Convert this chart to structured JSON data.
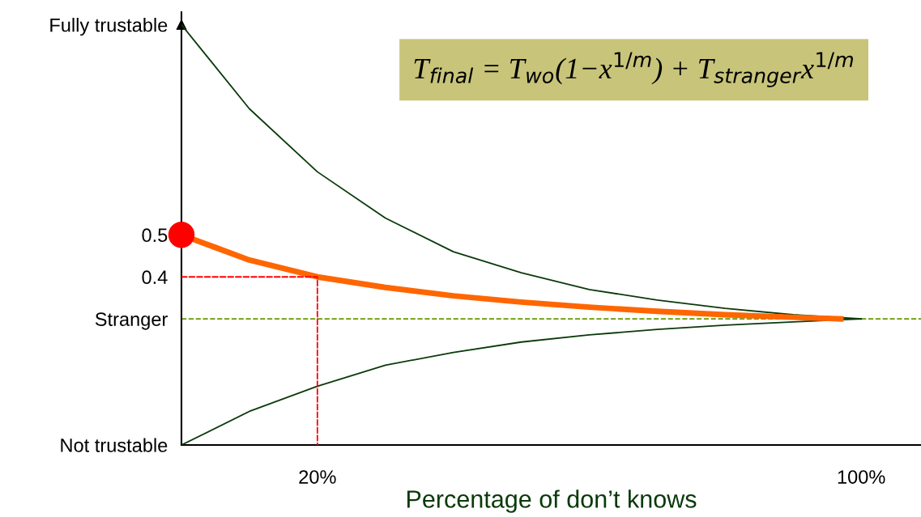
{
  "chart_data": {
    "type": "line",
    "xlabel": "Percentage of don’t knows",
    "xlim": [
      0,
      108.8
    ],
    "ylim": [
      0,
      1.03
    ],
    "xticks": [
      {
        "value": 20,
        "label": "20%"
      },
      {
        "value": 100,
        "label": "100%"
      }
    ],
    "yticks": [
      {
        "value": 0,
        "label": "Not trustable"
      },
      {
        "value": 0.3,
        "label": "Stranger"
      },
      0.4,
      0.5,
      {
        "value": 1,
        "label": "Fully trustable"
      }
    ],
    "grid": false,
    "legend": false,
    "ref_lines": [
      {
        "axis": "y",
        "value": 0.3,
        "color": "#669900",
        "line_style": "dashed"
      }
    ],
    "annotations": [
      "T$_{final}$ = T$_{wo}$(1−x$^{1/m}$) + T$_{stranger}$x$^{1/m}$"
    ],
    "series": [
      {
        "color": "#0a3a0a",
        "line_style": "solid",
        "x": [
          0,
          10,
          20,
          30,
          40,
          50,
          60,
          70,
          80,
          90,
          100
        ],
        "values": [
          1,
          0.8,
          0.65,
          0.54,
          0.46,
          0.41,
          0.37,
          0.345,
          0.325,
          0.31,
          0.3
        ]
      },
      {
        "color": "#0a3a0a",
        "line_style": "solid",
        "x": [
          0,
          10,
          20,
          30,
          40,
          50,
          60,
          70,
          80,
          90,
          100
        ],
        "values": [
          0,
          0.08,
          0.14,
          0.19,
          0.22,
          0.245,
          0.262,
          0.275,
          0.285,
          0.293,
          0.3
        ]
      },
      {
        "color": "#ff6600",
        "line_style": "solid",
        "x": [
          0,
          5,
          10,
          20,
          30,
          40,
          50,
          60,
          70,
          80,
          90,
          97
        ],
        "values": [
          0.5,
          0.47,
          0.44,
          0.4,
          0.375,
          0.355,
          0.34,
          0.328,
          0.318,
          0.31,
          0.304,
          0.3
        ]
      },
      {
        "color": "#ff0000",
        "line_style": "dashed",
        "x": [
          0,
          20,
          20
        ],
        "values": [
          0.4,
          0.4,
          0
        ]
      },
      {
        "type": "scatter",
        "color": "#ff0000",
        "marker": "circle",
        "x": [
          0
        ],
        "values": [
          0.5
        ]
      }
    ]
  }
}
